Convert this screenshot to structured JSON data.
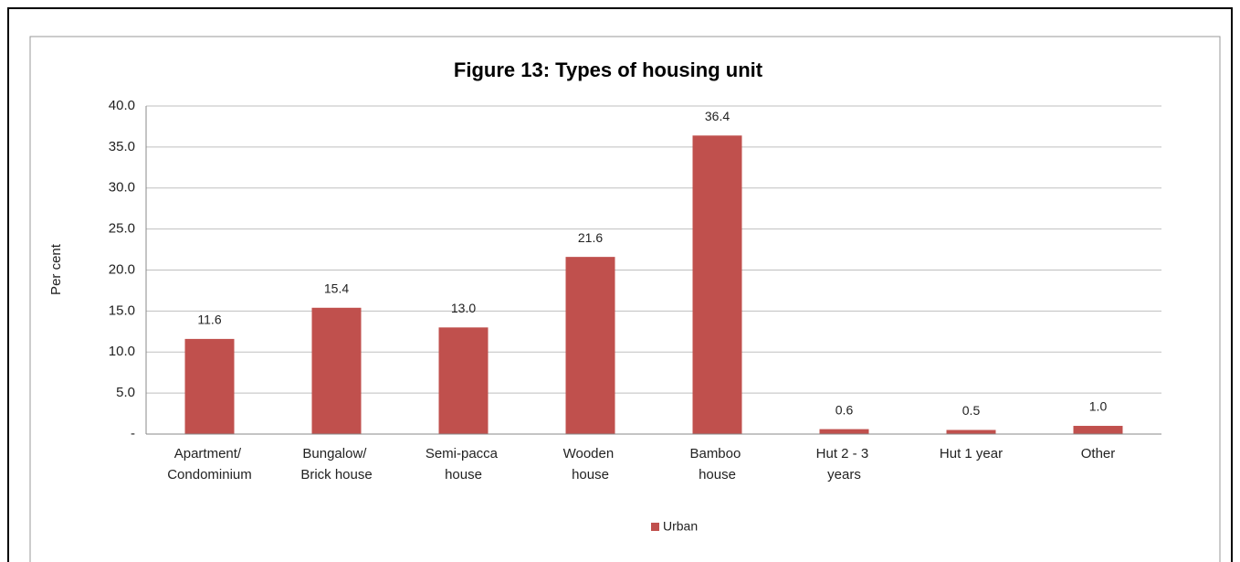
{
  "chart_data": {
    "type": "bar",
    "title": "Figure 13:  Types of housing unit",
    "y_label": "Per cent",
    "categories": [
      "Apartment/\nCondominium",
      "Bungalow/\nBrick house",
      "Semi-pacca\nhouse",
      "Wooden\nhouse",
      "Bamboo\nhouse",
      "Hut 2 - 3\nyears",
      "Hut 1 year",
      "Other"
    ],
    "series": [
      {
        "name": "Urban",
        "color": "#c0504d",
        "values": [
          11.6,
          15.4,
          13.0,
          21.6,
          36.4,
          0.6,
          0.5,
          1.0
        ],
        "value_labels": [
          "11.6",
          "15.4",
          "13.0",
          "21.6",
          "36.4",
          "0.6",
          "0.5",
          "1.0"
        ]
      }
    ],
    "ylim": [
      0,
      40
    ],
    "yticks": [
      {
        "value": 0,
        "label": "-"
      },
      {
        "value": 5,
        "label": "5.0"
      },
      {
        "value": 10,
        "label": "10.0"
      },
      {
        "value": 15,
        "label": "15.0"
      },
      {
        "value": 20,
        "label": "20.0"
      },
      {
        "value": 25,
        "label": "25.0"
      },
      {
        "value": 30,
        "label": "30.0"
      },
      {
        "value": 35,
        "label": "35.0"
      },
      {
        "value": 40,
        "label": "40.0"
      }
    ],
    "grid": true,
    "legend": "bottom"
  }
}
